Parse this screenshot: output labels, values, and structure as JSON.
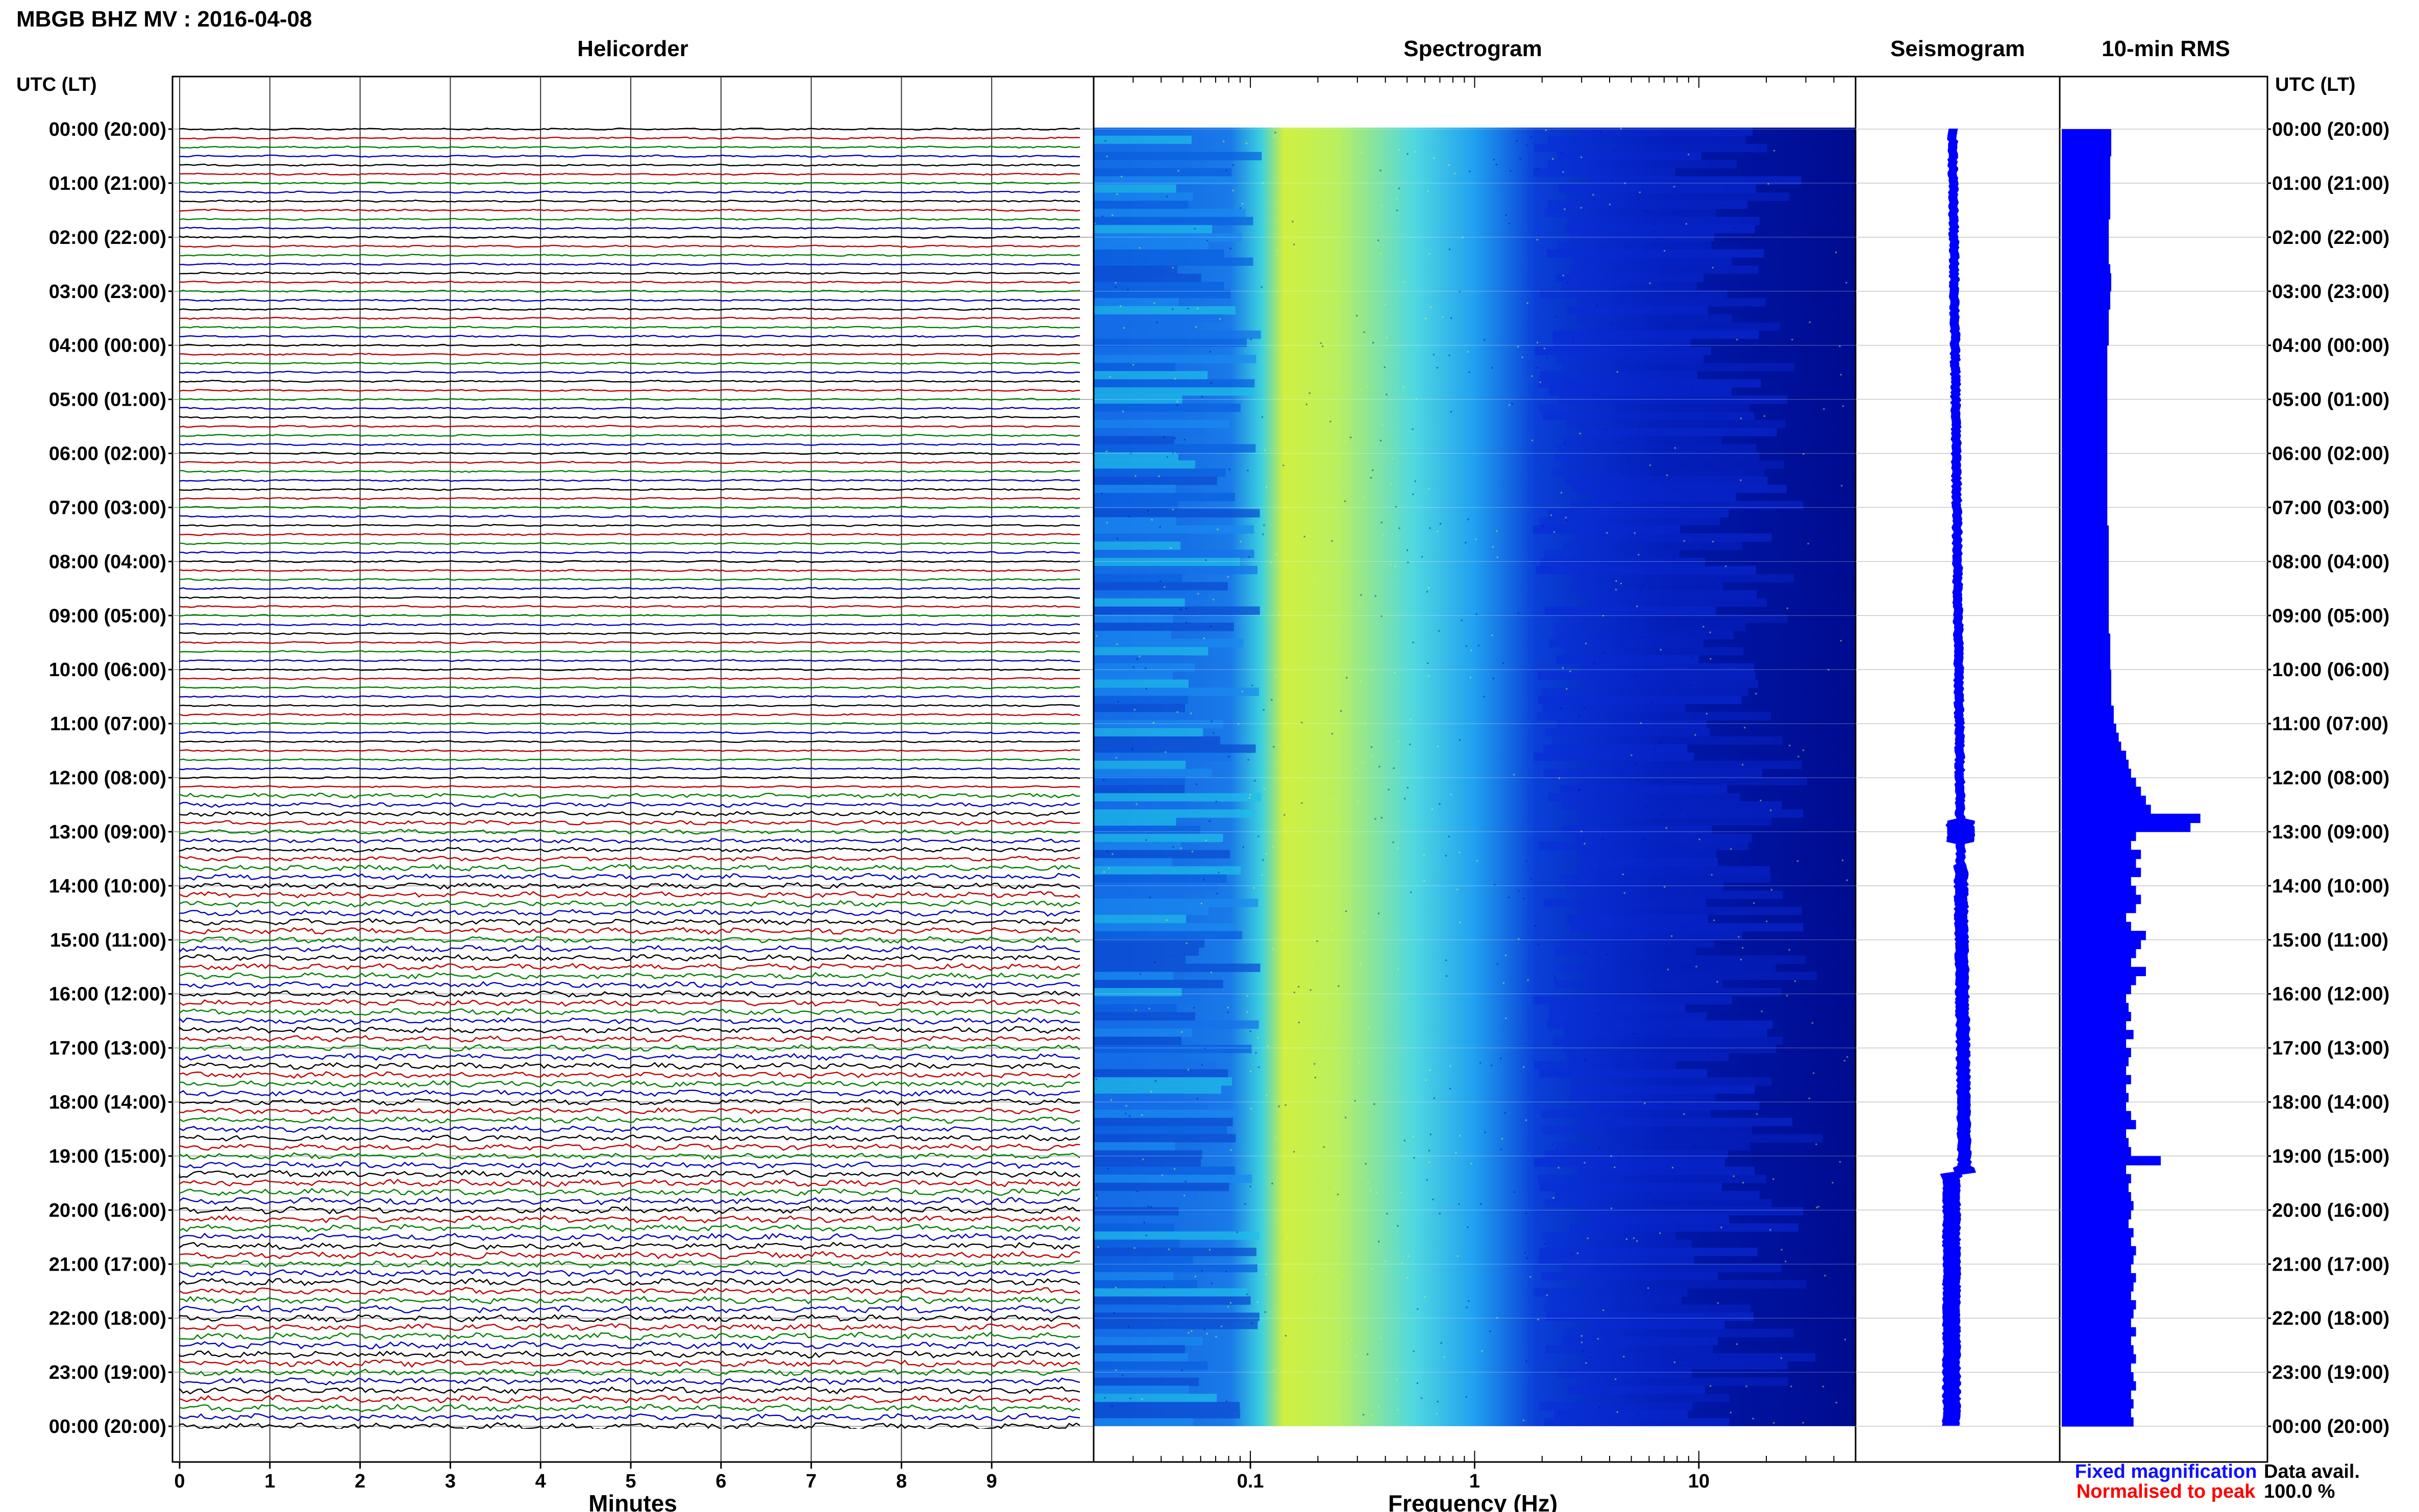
{
  "header": {
    "station_title": "MBGB BHZ MV : 2016-04-08"
  },
  "panels": {
    "helicorder": "Helicorder",
    "spectrogram": "Spectrogram",
    "seismogram": "Seismogram",
    "rms": "10-min RMS"
  },
  "axis": {
    "left_label": "UTC (LT)",
    "right_label": "UTC (LT)",
    "helicorder_xlabel": "Minutes",
    "spectrogram_xlabel": "Frequency (Hz)"
  },
  "legend": {
    "fixed": "Fixed magnification",
    "normalised": "Normalised to peak",
    "fixed_color": "#1010ff",
    "normalised_color": "#ff0000"
  },
  "availability": {
    "label": "Data avail.",
    "value": "100.0 %"
  },
  "colors": {
    "trace_cycle": [
      "#000000",
      "#c00000",
      "#008000",
      "#0000c0"
    ],
    "rms_fill": "#0000ff",
    "seismogram": "#0000ff",
    "spectrogram_colormap": [
      "#00007a",
      "#0000ff",
      "#00bfff",
      "#40e0d0",
      "#d7f542"
    ]
  },
  "chart_data": [
    {
      "type": "line",
      "name": "helicorder",
      "title": "Helicorder",
      "xlabel": "Minutes",
      "x_ticks": [
        0,
        1,
        2,
        3,
        4,
        5,
        6,
        7,
        8,
        9
      ],
      "xlim": [
        0,
        10
      ],
      "time_labels": [
        "00:00 (20:00)",
        "01:00 (21:00)",
        "02:00 (22:00)",
        "03:00 (23:00)",
        "04:00 (00:00)",
        "05:00 (01:00)",
        "06:00 (02:00)",
        "07:00 (03:00)",
        "08:00 (04:00)",
        "09:00 (05:00)",
        "10:00 (06:00)",
        "11:00 (07:00)",
        "12:00 (08:00)",
        "13:00 (09:00)",
        "14:00 (10:00)",
        "15:00 (11:00)",
        "16:00 (12:00)",
        "17:00 (13:00)",
        "18:00 (14:00)",
        "19:00 (15:00)",
        "20:00 (16:00)",
        "21:00 (17:00)",
        "22:00 (18:00)",
        "23:00 (19:00)",
        "00:00 (20:00)"
      ],
      "traces_per_hour": 6,
      "trace_count": 144,
      "grid": true
    },
    {
      "type": "heatmap",
      "name": "spectrogram",
      "title": "Spectrogram",
      "xlabel": "Frequency (Hz)",
      "x_scale": "log",
      "xlim": [
        0.02,
        50
      ],
      "x_ticks": [
        0.1,
        1,
        10
      ],
      "x_tick_labels": [
        "0.1",
        "1",
        "10"
      ],
      "peak_band_hz": [
        0.15,
        0.5
      ]
    },
    {
      "type": "line",
      "name": "seismogram",
      "title": "Seismogram",
      "note": "",
      "event_hours": [
        13,
        19.3
      ]
    },
    {
      "type": "bar",
      "name": "rms",
      "title": "10-min RMS",
      "values": [
        1.0,
        1.0,
        1.0,
        0.98,
        0.98,
        0.98,
        0.98,
        0.98,
        0.98,
        0.98,
        0.95,
        0.95,
        0.95,
        0.95,
        0.95,
        0.98,
        1.0,
        1.0,
        0.98,
        0.98,
        0.95,
        0.95,
        0.95,
        0.95,
        0.92,
        0.92,
        0.92,
        0.92,
        0.92,
        0.92,
        0.92,
        0.92,
        0.92,
        0.92,
        0.92,
        0.92,
        0.92,
        0.92,
        0.92,
        0.92,
        0.92,
        0.92,
        0.92,
        0.92,
        0.95,
        0.95,
        0.95,
        0.95,
        0.95,
        0.95,
        0.95,
        0.95,
        0.95,
        0.95,
        0.95,
        0.95,
        0.98,
        0.98,
        0.98,
        0.98,
        1.0,
        1.0,
        1.0,
        1.0,
        1.05,
        1.05,
        1.1,
        1.15,
        1.2,
        1.3,
        1.35,
        1.4,
        1.5,
        1.6,
        1.7,
        1.8,
        2.8,
        2.6,
        1.5,
        1.4,
        1.6,
        1.5,
        1.6,
        1.4,
        1.5,
        1.6,
        1.5,
        1.3,
        1.4,
        1.7,
        1.6,
        1.5,
        1.4,
        1.7,
        1.5,
        1.4,
        1.3,
        1.35,
        1.4,
        1.3,
        1.45,
        1.3,
        1.4,
        1.35,
        1.3,
        1.4,
        1.3,
        1.35,
        1.3,
        1.4,
        1.5,
        1.3,
        1.35,
        1.4,
        2.0,
        1.3,
        1.4,
        1.35,
        1.4,
        1.45,
        1.4,
        1.35,
        1.45,
        1.4,
        1.5,
        1.45,
        1.4,
        1.5,
        1.45,
        1.4,
        1.5,
        1.45,
        1.4,
        1.5,
        1.4,
        1.45,
        1.5,
        1.4,
        1.45,
        1.5,
        1.4,
        1.45,
        1.4,
        1.45
      ]
    }
  ]
}
